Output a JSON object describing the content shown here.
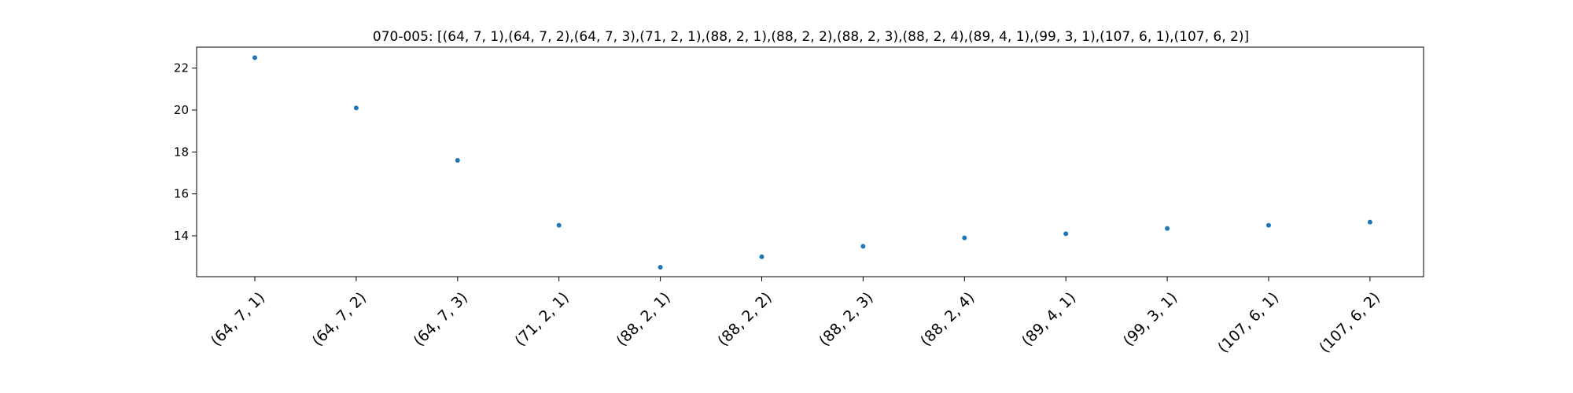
{
  "chart_data": {
    "type": "scatter",
    "title": "070-005: [(64, 7, 1),(64, 7, 2),(64, 7, 3),(71, 2, 1),(88, 2, 1),(88, 2, 2),(88, 2, 3),(88, 2, 4),(89, 4, 1),(99, 3, 1),(107, 6, 1),(107, 6, 2)]",
    "xlabel": "",
    "ylabel": "",
    "categories": [
      "(64, 7, 1)",
      "(64, 7, 2)",
      "(64, 7, 3)",
      "(71, 2, 1)",
      "(88, 2, 1)",
      "(88, 2, 2)",
      "(88, 2, 3)",
      "(88, 2, 4)",
      "(89, 4, 1)",
      "(99, 3, 1)",
      "(107, 6, 1)",
      "(107, 6, 2)"
    ],
    "values": [
      22.5,
      20.1,
      17.6,
      14.5,
      12.5,
      13.0,
      13.5,
      13.9,
      14.1,
      14.35,
      14.5,
      14.65
    ],
    "ylim": [
      12.05,
      23.0
    ],
    "yticks": [
      14,
      16,
      18,
      20,
      22
    ],
    "grid": false,
    "marker_color": "#1f77b4"
  }
}
